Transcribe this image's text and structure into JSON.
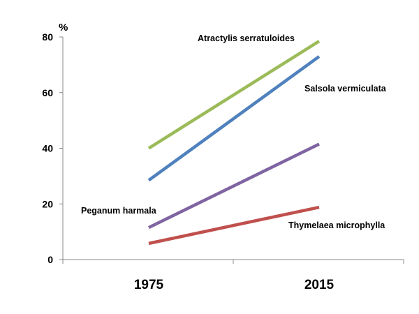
{
  "chart_data": {
    "type": "line",
    "ylabel": "%",
    "ylim": [
      0,
      80
    ],
    "yticks": [
      "0",
      "20",
      "40",
      "60",
      "80"
    ],
    "categories": [
      "1975",
      "2015"
    ],
    "grid": false,
    "series": [
      {
        "name": "Atractylis serratuloides",
        "values": [
          40,
          78.5
        ],
        "color": "#9BBB59"
      },
      {
        "name": "Salsola vermiculata",
        "values": [
          28.5,
          73
        ],
        "color": "#4F81BD"
      },
      {
        "name": "Peganum harmala",
        "values": [
          11.5,
          41.5
        ],
        "color": "#8064A2"
      },
      {
        "name": "Thymelaea microphylla",
        "values": [
          5.8,
          18.8
        ],
        "color": "#C0504D"
      }
    ]
  }
}
